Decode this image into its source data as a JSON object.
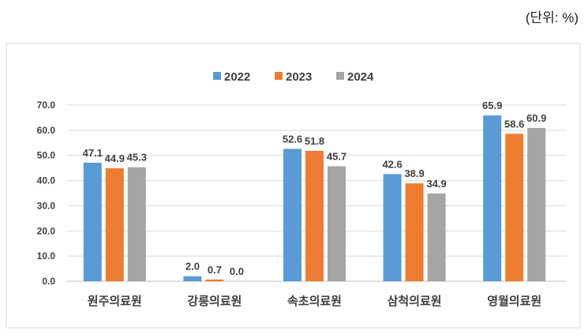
{
  "unit_label": "(단위: %)",
  "chart_data": {
    "type": "bar",
    "categories": [
      "원주의료원",
      "강릉의료원",
      "속초의료원",
      "삼척의료원",
      "영월의료원"
    ],
    "series": [
      {
        "name": "2022",
        "color": "#5B9BD5",
        "values": [
          47.1,
          2.0,
          52.6,
          42.6,
          65.9
        ]
      },
      {
        "name": "2023",
        "color": "#ED7D31",
        "values": [
          44.9,
          0.7,
          51.8,
          38.9,
          58.6
        ]
      },
      {
        "name": "2024",
        "color": "#A5A5A5",
        "values": [
          45.3,
          0.0,
          45.7,
          34.9,
          60.9
        ]
      }
    ],
    "yticks": [
      "0.0",
      "10.0",
      "20.0",
      "30.0",
      "40.0",
      "50.0",
      "60.0",
      "70.0"
    ],
    "ylim": [
      0,
      70
    ],
    "grid": true,
    "legend": "top-center",
    "title": "",
    "xlabel": "",
    "ylabel": ""
  }
}
